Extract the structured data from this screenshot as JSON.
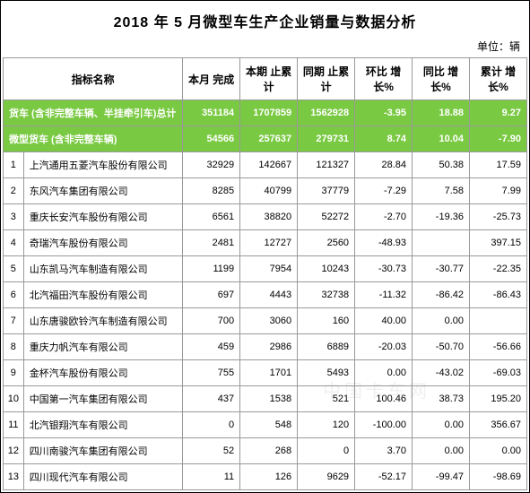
{
  "title": "2018 年 5 月微型车生产企业销量与数据分析",
  "unit": "单位：辆",
  "headers": {
    "indicator": "指标名称",
    "this_month": "本月\n完成",
    "period_cum": "本期\n止累计",
    "same_cum": "同期\n止累计",
    "mom": "环比\n增长%",
    "yoy": "同比\n增长%",
    "cum_growth": "累计\n增长%"
  },
  "summary_rows": [
    {
      "name": "货车 (含非完整车辆、半挂牵引车)总计",
      "this_month": "351184",
      "period_cum": "1707859",
      "same_cum": "1562928",
      "mom": "-3.95",
      "yoy": "18.88",
      "cum": "9.27"
    },
    {
      "name": "微型货车 (含非完整车辆)",
      "this_month": "54566",
      "period_cum": "257637",
      "same_cum": "279731",
      "mom": "8.74",
      "yoy": "10.04",
      "cum": "-7.90"
    }
  ],
  "rows": [
    {
      "idx": "1",
      "name": "上汽通用五菱汽车股份有限公司",
      "this_month": "32929",
      "period_cum": "142667",
      "same_cum": "121327",
      "mom": "28.84",
      "yoy": "50.38",
      "cum": "17.59"
    },
    {
      "idx": "2",
      "name": "东风汽车集团有限公司",
      "this_month": "8285",
      "period_cum": "40799",
      "same_cum": "37779",
      "mom": "-7.29",
      "yoy": "7.58",
      "cum": "7.99"
    },
    {
      "idx": "3",
      "name": "重庆长安汽车股份有限公司",
      "this_month": "6561",
      "period_cum": "38820",
      "same_cum": "52272",
      "mom": "-2.70",
      "yoy": "-19.36",
      "cum": "-25.73"
    },
    {
      "idx": "4",
      "name": "奇瑞汽车股份有限公司",
      "this_month": "2481",
      "period_cum": "12727",
      "same_cum": "2560",
      "mom": "-48.93",
      "yoy": "",
      "cum": "397.15"
    },
    {
      "idx": "5",
      "name": "山东凯马汽车制造有限公司",
      "this_month": "1199",
      "period_cum": "7954",
      "same_cum": "10243",
      "mom": "-30.73",
      "yoy": "-30.77",
      "cum": "-22.35"
    },
    {
      "idx": "6",
      "name": "北汽福田汽车股份有限公司",
      "this_month": "697",
      "period_cum": "4443",
      "same_cum": "32738",
      "mom": "-11.32",
      "yoy": "-86.42",
      "cum": "-86.43"
    },
    {
      "idx": "7",
      "name": "山东唐骏欧铃汽车制造有限公司",
      "this_month": "700",
      "period_cum": "3060",
      "same_cum": "160",
      "mom": "40.00",
      "yoy": "0.00",
      "cum": ""
    },
    {
      "idx": "8",
      "name": "重庆力帆汽车有限公司",
      "this_month": "459",
      "period_cum": "2986",
      "same_cum": "6889",
      "mom": "-20.03",
      "yoy": "-50.70",
      "cum": "-56.66"
    },
    {
      "idx": "9",
      "name": "金杯汽车股份有限公司",
      "this_month": "755",
      "period_cum": "1701",
      "same_cum": "5493",
      "mom": "0.00",
      "yoy": "-43.02",
      "cum": "-69.03"
    },
    {
      "idx": "10",
      "name": "中国第一汽车集团有限公司",
      "this_month": "437",
      "period_cum": "1538",
      "same_cum": "521",
      "mom": "100.46",
      "yoy": "38.73",
      "cum": "195.20"
    },
    {
      "idx": "11",
      "name": "北汽银翔汽车有限公司",
      "this_month": "0",
      "period_cum": "548",
      "same_cum": "120",
      "mom": "-100.00",
      "yoy": "0.00",
      "cum": "356.67"
    },
    {
      "idx": "12",
      "name": "四川南骏汽车集团有限公司",
      "this_month": "52",
      "period_cum": "268",
      "same_cum": "0",
      "mom": "3.70",
      "yoy": "0.00",
      "cum": "0.00"
    },
    {
      "idx": "13",
      "name": "四川现代汽车有限公司",
      "this_month": "11",
      "period_cum": "126",
      "same_cum": "9629",
      "mom": "-52.17",
      "yoy": "-99.47",
      "cum": "-98.69"
    }
  ],
  "colors": {
    "highlight_bg": "#7ac943",
    "highlight_text": "#ffffff",
    "border": "#999999"
  }
}
